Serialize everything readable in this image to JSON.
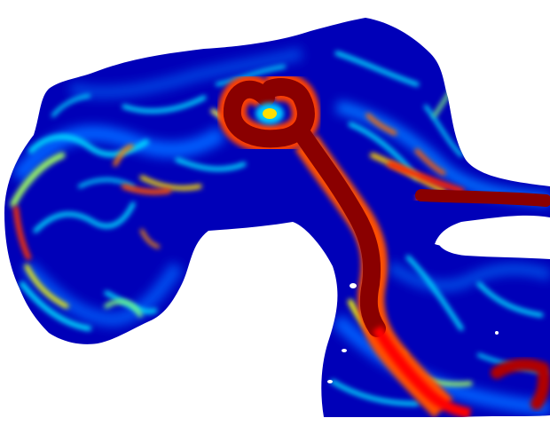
{
  "figure": {
    "kind": "scalar field visualization",
    "colormap": [
      "#00007f",
      "#0000ff",
      "#0080ff",
      "#00ffff",
      "#80ff80",
      "#ffff00",
      "#ff8000",
      "#ff0000",
      "#800000"
    ]
  }
}
